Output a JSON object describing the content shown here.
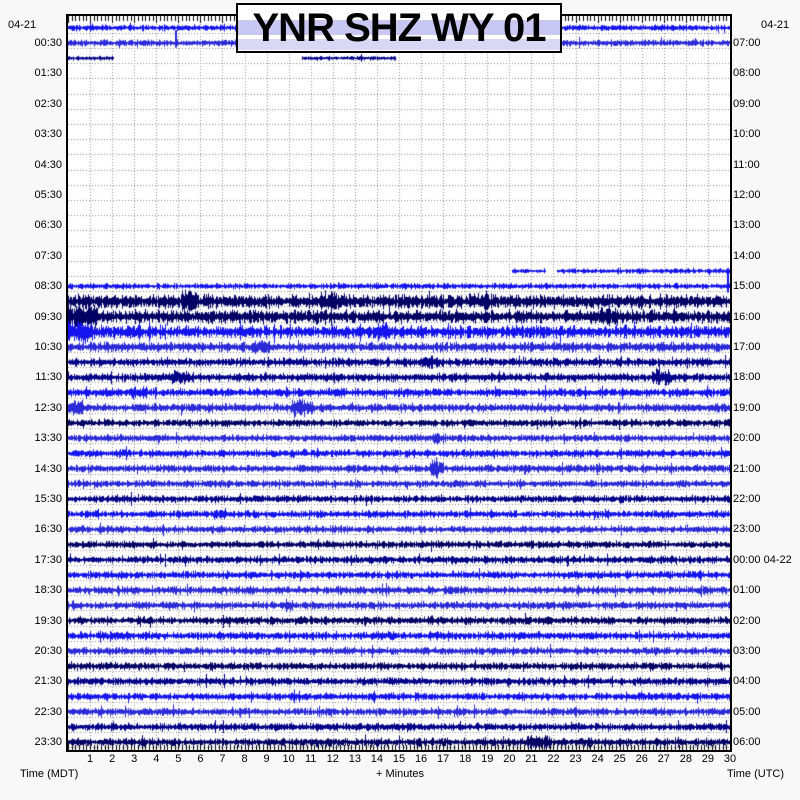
{
  "title": "YNR SHZ WY 01",
  "dates": {
    "top_left": "04-21",
    "top_right": "04-21"
  },
  "axes": {
    "bottom_left_caption": "Time (MDT)",
    "bottom_center_caption": "+ Minutes",
    "bottom_right_caption": "Time (UTC)",
    "minute_labels": [
      "1",
      "2",
      "3",
      "4",
      "5",
      "6",
      "7",
      "8",
      "9",
      "10",
      "11",
      "12",
      "13",
      "14",
      "15",
      "16",
      "17",
      "18",
      "19",
      "20",
      "21",
      "22",
      "23",
      "24",
      "25",
      "26",
      "27",
      "28",
      "29",
      "30"
    ],
    "left_labels": [
      {
        "text": "00:30",
        "row": 1
      },
      {
        "text": "01:30",
        "row": 3
      },
      {
        "text": "02:30",
        "row": 5
      },
      {
        "text": "03:30",
        "row": 7
      },
      {
        "text": "04:30",
        "row": 9
      },
      {
        "text": "05:30",
        "row": 11
      },
      {
        "text": "06:30",
        "row": 13
      },
      {
        "text": "07:30",
        "row": 15
      },
      {
        "text": "08:30",
        "row": 17
      },
      {
        "text": "09:30",
        "row": 19
      },
      {
        "text": "10:30",
        "row": 21
      },
      {
        "text": "11:30",
        "row": 23
      },
      {
        "text": "12:30",
        "row": 25
      },
      {
        "text": "13:30",
        "row": 27
      },
      {
        "text": "14:30",
        "row": 29
      },
      {
        "text": "15:30",
        "row": 31
      },
      {
        "text": "16:30",
        "row": 33
      },
      {
        "text": "17:30",
        "row": 35
      },
      {
        "text": "18:30",
        "row": 37
      },
      {
        "text": "19:30",
        "row": 39
      },
      {
        "text": "20:30",
        "row": 41
      },
      {
        "text": "21:30",
        "row": 43
      },
      {
        "text": "22:30",
        "row": 45
      },
      {
        "text": "23:30",
        "row": 47
      }
    ],
    "right_labels": [
      {
        "text": "07:00",
        "row": 1
      },
      {
        "text": "08:00",
        "row": 3
      },
      {
        "text": "09:00",
        "row": 5
      },
      {
        "text": "10:00",
        "row": 7
      },
      {
        "text": "11:00",
        "row": 9
      },
      {
        "text": "12:00",
        "row": 11
      },
      {
        "text": "13:00",
        "row": 13
      },
      {
        "text": "14:00",
        "row": 15
      },
      {
        "text": "15:00",
        "row": 17
      },
      {
        "text": "16:00",
        "row": 19
      },
      {
        "text": "17:00",
        "row": 21
      },
      {
        "text": "18:00",
        "row": 23
      },
      {
        "text": "19:00",
        "row": 25
      },
      {
        "text": "20:00",
        "row": 27
      },
      {
        "text": "21:00",
        "row": 29
      },
      {
        "text": "22:00",
        "row": 31
      },
      {
        "text": "23:00",
        "row": 33
      },
      {
        "text": "00:00 04-22",
        "row": 35
      },
      {
        "text": "01:00",
        "row": 37
      },
      {
        "text": "02:00",
        "row": 39
      },
      {
        "text": "03:00",
        "row": 41
      },
      {
        "text": "04:00",
        "row": 43
      },
      {
        "text": "05:00",
        "row": 45
      },
      {
        "text": "06:00",
        "row": 47
      }
    ]
  },
  "colors": {
    "bright": "#1414ee",
    "medium": "#2a2ad8",
    "navy": "#000088",
    "darknavy": "#000064",
    "grid": "#8c8c8c",
    "border": "#000000",
    "ghost1": "#c8c8f3",
    "ghost2": "#d8d8f5",
    "plot_bg": "#ffffff",
    "page_bg": "#f8f8f8"
  },
  "chart_data": {
    "type": "helicorder",
    "station": "YNR",
    "channel": "SHZ",
    "network": "WY",
    "location": "01",
    "minutes_per_line": 30,
    "lines_per_day": 48,
    "time_axis_left": "MDT",
    "time_axis_right": "UTC",
    "lines": [
      {
        "row": 0,
        "start_mdt": "00:00",
        "color": "bright",
        "amp": 3.2,
        "segments": [
          [
            0,
            30
          ]
        ],
        "bursts": []
      },
      {
        "row": 1,
        "start_mdt": "00:30",
        "color": "medium",
        "amp": 3.4,
        "segments": [
          [
            0,
            30
          ]
        ],
        "bursts": [],
        "spikes": [
          [
            4.85,
            13
          ]
        ]
      },
      {
        "row": 2,
        "start_mdt": "01:00",
        "color": "navy",
        "amp": 2.4,
        "segments": [
          [
            0,
            2.05
          ],
          [
            10.6,
            14.8
          ]
        ],
        "bursts": []
      },
      {
        "row": 3,
        "start_mdt": "01:30",
        "color": "navy",
        "amp": 0,
        "segments": [],
        "bursts": []
      },
      {
        "row": 4,
        "start_mdt": "02:00",
        "color": "bright",
        "amp": 0,
        "segments": [],
        "bursts": []
      },
      {
        "row": 5,
        "start_mdt": "02:30",
        "color": "medium",
        "amp": 0,
        "segments": [],
        "bursts": []
      },
      {
        "row": 6,
        "start_mdt": "03:00",
        "color": "navy",
        "amp": 0,
        "segments": [],
        "bursts": []
      },
      {
        "row": 7,
        "start_mdt": "03:30",
        "color": "navy",
        "amp": 0,
        "segments": [],
        "bursts": []
      },
      {
        "row": 8,
        "start_mdt": "04:00",
        "color": "bright",
        "amp": 0,
        "segments": [],
        "bursts": []
      },
      {
        "row": 9,
        "start_mdt": "04:30",
        "color": "medium",
        "amp": 0,
        "segments": [],
        "bursts": []
      },
      {
        "row": 10,
        "start_mdt": "05:00",
        "color": "navy",
        "amp": 0,
        "segments": [],
        "bursts": []
      },
      {
        "row": 11,
        "start_mdt": "05:30",
        "color": "navy",
        "amp": 0,
        "segments": [],
        "bursts": []
      },
      {
        "row": 12,
        "start_mdt": "06:00",
        "color": "bright",
        "amp": 0,
        "segments": [],
        "bursts": []
      },
      {
        "row": 13,
        "start_mdt": "06:30",
        "color": "medium",
        "amp": 0,
        "segments": [],
        "bursts": []
      },
      {
        "row": 14,
        "start_mdt": "07:00",
        "color": "navy",
        "amp": 0,
        "segments": [],
        "bursts": []
      },
      {
        "row": 15,
        "start_mdt": "07:30",
        "color": "navy",
        "amp": 0,
        "segments": [],
        "bursts": []
      },
      {
        "row": 16,
        "start_mdt": "08:00",
        "color": "bright",
        "amp": 2.6,
        "segments": [
          [
            20.1,
            21.6
          ],
          [
            22.15,
            30
          ]
        ],
        "bursts": []
      },
      {
        "row": 17,
        "start_mdt": "08:30",
        "color": "bright",
        "amp": 3.0,
        "segments": [
          [
            0,
            30
          ]
        ],
        "bursts": [],
        "spikes": [
          [
            29.85,
            18
          ]
        ]
      },
      {
        "row": 18,
        "start_mdt": "09:00",
        "color": "darknavy",
        "amp": 7.0,
        "segments": [
          [
            0,
            30
          ]
        ],
        "bursts": [
          [
            5.5,
            0.8,
            11
          ],
          [
            11.8,
            0.7,
            10
          ],
          [
            18.6,
            0.9,
            10
          ]
        ]
      },
      {
        "row": 19,
        "start_mdt": "09:30",
        "color": "darknavy",
        "amp": 6.8,
        "segments": [
          [
            0,
            30
          ]
        ],
        "bursts": [
          [
            0.6,
            1.5,
            12
          ],
          [
            24.5,
            0.8,
            10
          ]
        ]
      },
      {
        "row": 20,
        "start_mdt": "10:00",
        "color": "bright",
        "amp": 6.5,
        "segments": [
          [
            0,
            30
          ]
        ],
        "bursts": [
          [
            0.5,
            1.2,
            11
          ],
          [
            14.2,
            0.8,
            9
          ]
        ]
      },
      {
        "row": 21,
        "start_mdt": "10:30",
        "color": "medium",
        "amp": 5.0,
        "segments": [
          [
            0,
            30
          ]
        ],
        "bursts": [
          [
            8.7,
            0.9,
            8
          ]
        ]
      },
      {
        "row": 22,
        "start_mdt": "11:00",
        "color": "navy",
        "amp": 4.4,
        "segments": [
          [
            0,
            30
          ]
        ],
        "bursts": [
          [
            16.5,
            0.7,
            7
          ]
        ]
      },
      {
        "row": 23,
        "start_mdt": "11:30",
        "color": "navy",
        "amp": 4.4,
        "segments": [
          [
            0,
            30
          ]
        ],
        "bursts": [
          [
            5.0,
            0.7,
            7
          ],
          [
            26.9,
            0.9,
            9
          ]
        ]
      },
      {
        "row": 24,
        "start_mdt": "12:00",
        "color": "bright",
        "amp": 4.4,
        "segments": [
          [
            0,
            30
          ]
        ],
        "bursts": [
          [
            3.2,
            0.7,
            7
          ]
        ]
      },
      {
        "row": 25,
        "start_mdt": "12:30",
        "color": "medium",
        "amp": 4.4,
        "segments": [
          [
            0,
            30
          ]
        ],
        "bursts": [
          [
            0.3,
            0.8,
            8
          ],
          [
            10.6,
            1.0,
            9
          ]
        ]
      },
      {
        "row": 26,
        "start_mdt": "13:00",
        "color": "darknavy",
        "amp": 3.8,
        "segments": [
          [
            0,
            30
          ]
        ],
        "bursts": []
      },
      {
        "row": 27,
        "start_mdt": "13:30",
        "color": "medium",
        "amp": 3.8,
        "segments": [
          [
            0,
            30
          ]
        ],
        "bursts": [
          [
            16.8,
            0.6,
            6
          ]
        ]
      },
      {
        "row": 28,
        "start_mdt": "14:00",
        "color": "bright",
        "amp": 4.0,
        "segments": [
          [
            0,
            30
          ]
        ],
        "bursts": []
      },
      {
        "row": 29,
        "start_mdt": "14:30",
        "color": "medium",
        "amp": 4.0,
        "segments": [
          [
            0,
            30
          ]
        ],
        "bursts": [
          [
            16.7,
            0.6,
            10
          ]
        ]
      },
      {
        "row": 30,
        "start_mdt": "15:00",
        "color": "medium",
        "amp": 3.8,
        "segments": [
          [
            0,
            30
          ]
        ],
        "bursts": []
      },
      {
        "row": 31,
        "start_mdt": "15:30",
        "color": "navy",
        "amp": 3.8,
        "segments": [
          [
            0,
            30
          ]
        ],
        "bursts": []
      },
      {
        "row": 32,
        "start_mdt": "16:00",
        "color": "bright",
        "amp": 3.8,
        "segments": [
          [
            0,
            30
          ]
        ],
        "bursts": [
          [
            6.9,
            0.6,
            6
          ]
        ]
      },
      {
        "row": 33,
        "start_mdt": "16:30",
        "color": "medium",
        "amp": 3.8,
        "segments": [
          [
            0,
            30
          ]
        ],
        "bursts": []
      },
      {
        "row": 34,
        "start_mdt": "17:00",
        "color": "darknavy",
        "amp": 3.8,
        "segments": [
          [
            0,
            30
          ]
        ],
        "bursts": []
      },
      {
        "row": 35,
        "start_mdt": "17:30",
        "color": "navy",
        "amp": 3.8,
        "segments": [
          [
            0,
            30
          ]
        ],
        "bursts": []
      },
      {
        "row": 36,
        "start_mdt": "18:00",
        "color": "bright",
        "amp": 4.0,
        "segments": [
          [
            0,
            30
          ]
        ],
        "bursts": []
      },
      {
        "row": 37,
        "start_mdt": "18:30",
        "color": "medium",
        "amp": 4.0,
        "segments": [
          [
            0,
            30
          ]
        ],
        "bursts": []
      },
      {
        "row": 38,
        "start_mdt": "19:00",
        "color": "medium",
        "amp": 4.0,
        "segments": [
          [
            0,
            30
          ]
        ],
        "bursts": []
      },
      {
        "row": 39,
        "start_mdt": "19:30",
        "color": "darknavy",
        "amp": 4.2,
        "segments": [
          [
            0,
            30
          ]
        ],
        "bursts": []
      },
      {
        "row": 40,
        "start_mdt": "20:00",
        "color": "bright",
        "amp": 4.2,
        "segments": [
          [
            0,
            30
          ]
        ],
        "bursts": []
      },
      {
        "row": 41,
        "start_mdt": "20:30",
        "color": "medium",
        "amp": 4.0,
        "segments": [
          [
            0,
            30
          ]
        ],
        "bursts": []
      },
      {
        "row": 42,
        "start_mdt": "21:00",
        "color": "darknavy",
        "amp": 4.0,
        "segments": [
          [
            0,
            30
          ]
        ],
        "bursts": []
      },
      {
        "row": 43,
        "start_mdt": "21:30",
        "color": "navy",
        "amp": 4.0,
        "segments": [
          [
            0,
            30
          ]
        ],
        "bursts": []
      },
      {
        "row": 44,
        "start_mdt": "22:00",
        "color": "bright",
        "amp": 4.0,
        "segments": [
          [
            0,
            30
          ]
        ],
        "bursts": []
      },
      {
        "row": 45,
        "start_mdt": "22:30",
        "color": "medium",
        "amp": 4.0,
        "segments": [
          [
            0,
            30
          ]
        ],
        "bursts": []
      },
      {
        "row": 46,
        "start_mdt": "23:00",
        "color": "navy",
        "amp": 4.0,
        "segments": [
          [
            0,
            30
          ]
        ],
        "bursts": []
      },
      {
        "row": 47,
        "start_mdt": "23:30",
        "color": "darknavy",
        "amp": 4.2,
        "segments": [
          [
            0,
            30
          ]
        ],
        "bursts": [
          [
            21.3,
            1.0,
            8
          ]
        ]
      }
    ]
  }
}
